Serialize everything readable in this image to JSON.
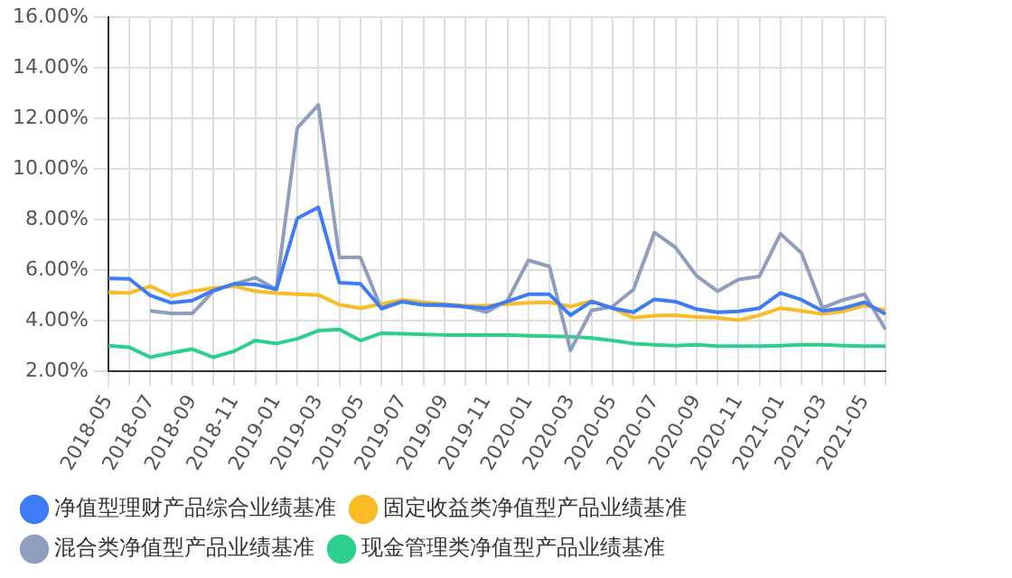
{
  "chart_data": {
    "type": "line",
    "categories": [
      "2018-05",
      null,
      "2018-07",
      null,
      "2018-09",
      null,
      "2018-11",
      null,
      "2019-01",
      null,
      "2019-03",
      null,
      "2019-05",
      null,
      "2019-07",
      null,
      "2019-09",
      null,
      "2019-11",
      null,
      "2020-01",
      null,
      "2020-03",
      null,
      "2020-05",
      null,
      "2020-07",
      null,
      "2020-09",
      null,
      "2020-11",
      null,
      "2021-01",
      null,
      "2021-03",
      null,
      "2021-05",
      null
    ],
    "series": [
      {
        "name": "净值型理财产品综合业绩基准",
        "color": "#3d7cf4",
        "values": [
          5.68,
          5.66,
          5.0,
          4.71,
          4.8,
          5.2,
          5.46,
          5.44,
          5.24,
          8.05,
          8.49,
          5.51,
          5.46,
          4.5,
          4.76,
          4.63,
          4.63,
          4.56,
          4.5,
          4.76,
          5.05,
          5.05,
          4.22,
          4.76,
          4.5,
          4.34,
          4.85,
          4.76,
          4.46,
          4.34,
          4.37,
          4.5,
          5.1,
          4.83,
          4.39,
          4.5,
          4.73,
          4.27
        ]
      },
      {
        "name": "固定收益类净值型产品业绩基准",
        "color": "#fbbb24",
        "values": [
          5.12,
          5.1,
          5.37,
          4.98,
          5.17,
          5.29,
          5.37,
          5.17,
          5.1,
          5.05,
          5.02,
          4.63,
          4.5,
          4.66,
          4.83,
          4.73,
          4.66,
          4.6,
          4.6,
          4.66,
          4.71,
          4.73,
          4.56,
          4.78,
          4.5,
          4.12,
          4.2,
          4.22,
          4.15,
          4.12,
          4.02,
          4.22,
          4.5,
          4.39,
          4.27,
          4.37,
          4.61,
          4.41
        ]
      },
      {
        "name": "混合类净值型产品业绩基准",
        "color": "#8f9dbf",
        "values": [
          null,
          null,
          4.39,
          4.29,
          4.29,
          5.17,
          5.46,
          5.7,
          5.24,
          11.63,
          12.54,
          6.51,
          6.51,
          4.46,
          4.76,
          4.63,
          4.6,
          4.56,
          4.34,
          4.8,
          6.39,
          6.15,
          2.83,
          4.41,
          4.56,
          5.24,
          7.49,
          6.9,
          5.78,
          5.17,
          5.63,
          5.76,
          7.44,
          6.68,
          4.51,
          4.83,
          5.05,
          3.66
        ]
      },
      {
        "name": "现金管理类净值型产品业绩基准",
        "color": "#2ccf8e",
        "values": [
          3.02,
          2.95,
          2.56,
          2.73,
          2.88,
          2.56,
          2.8,
          3.22,
          3.1,
          3.29,
          3.61,
          3.66,
          3.22,
          3.51,
          3.49,
          3.46,
          3.44,
          3.44,
          3.44,
          3.44,
          3.41,
          3.39,
          3.37,
          3.32,
          3.22,
          3.1,
          3.05,
          3.02,
          3.05,
          3.0,
          3.0,
          3.0,
          3.02,
          3.05,
          3.05,
          3.02,
          3.0,
          3.0
        ]
      }
    ],
    "ylim": [
      2,
      16
    ],
    "yticks": [
      {
        "value": 2,
        "label": "2.00%"
      },
      {
        "value": 4,
        "label": "4.00%"
      },
      {
        "value": 6,
        "label": "6.00%"
      },
      {
        "value": 8,
        "label": "8.00%"
      },
      {
        "value": 10,
        "label": "10.00%"
      },
      {
        "value": 12,
        "label": "12.00%"
      },
      {
        "value": 14,
        "label": "14.00%"
      },
      {
        "value": 16,
        "label": "16.00%"
      }
    ],
    "grid": true,
    "legend": "bottom"
  }
}
